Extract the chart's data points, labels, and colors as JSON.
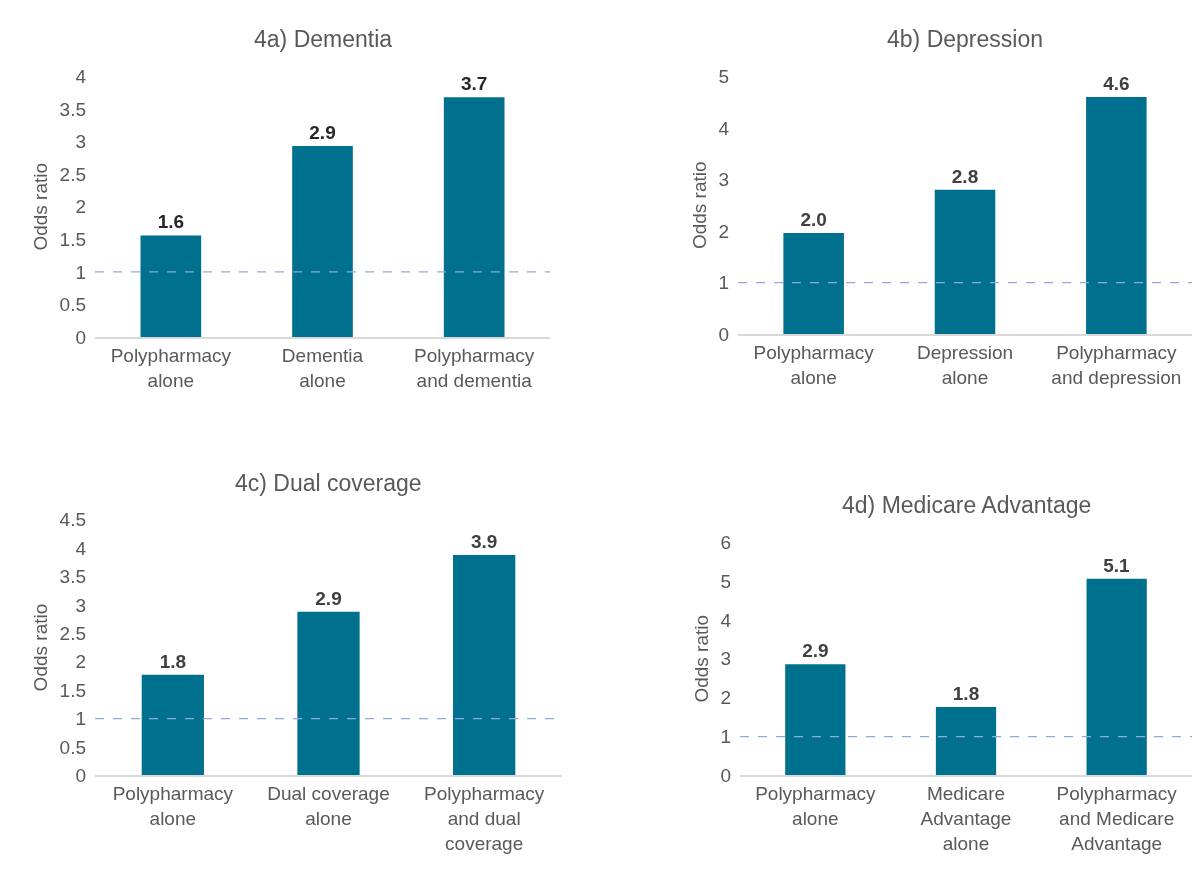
{
  "chart_data": [
    {
      "type": "bar",
      "title": "4a) Dementia",
      "ylabel": "Odds ratio",
      "categories": [
        "Polypharmacy\nalone",
        "Dementia\nalone",
        "Polypharmacy\nand dementia"
      ],
      "values": [
        1.56,
        2.93,
        3.68
      ],
      "value_labels": [
        "1.6",
        "2.9",
        "3.7"
      ],
      "color": "#00708f",
      "ylim": [
        0,
        4
      ],
      "yticks": [
        0,
        0.5,
        1,
        1.5,
        2,
        2.5,
        3,
        3.5,
        4
      ],
      "ref_lines": [
        {
          "axis": "y",
          "value": 1,
          "color": "#8faadc",
          "line_style": "dashed"
        }
      ]
    },
    {
      "type": "bar",
      "title": "4b) Depression",
      "ylabel": "Odds ratio",
      "categories": [
        "Polypharmacy\nalone",
        "Depression\nalone",
        "Polypharmacy\nand depression"
      ],
      "values": [
        1.96,
        2.8,
        4.6
      ],
      "value_labels": [
        "2.0",
        "2.8",
        "4.6"
      ],
      "color": "#00708f",
      "ylim": [
        0,
        5
      ],
      "yticks": [
        0,
        1,
        2,
        3,
        4,
        5
      ],
      "ref_lines": [
        {
          "axis": "y",
          "value": 1,
          "color": "#8faadc",
          "line_style": "dashed"
        }
      ]
    },
    {
      "type": "bar",
      "title": "4c) Dual coverage",
      "ylabel": "Odds ratio",
      "categories": [
        "Polypharmacy\nalone",
        "Dual coverage\nalone",
        "Polypharmacy\nand dual\ncoverage"
      ],
      "values": [
        1.77,
        2.88,
        3.88
      ],
      "value_labels": [
        "1.8",
        "2.9",
        "3.9"
      ],
      "color": "#00708f",
      "ylim": [
        0,
        4.5
      ],
      "yticks": [
        0,
        0.5,
        1,
        1.5,
        2,
        2.5,
        3,
        3.5,
        4,
        4.5
      ],
      "ref_lines": [
        {
          "axis": "y",
          "value": 1,
          "color": "#8faadc",
          "line_style": "dashed"
        }
      ]
    },
    {
      "type": "bar",
      "title": "4d) Medicare Advantage",
      "ylabel": "Odds ratio",
      "categories": [
        "Polypharmacy\nalone",
        "Medicare\nAdvantage\nalone",
        "Polypharmacy\nand Medicare\nAdvantage"
      ],
      "values": [
        2.86,
        1.76,
        5.06
      ],
      "value_labels": [
        "2.9",
        "1.8",
        "5.1"
      ],
      "color": "#00708f",
      "ylim": [
        0,
        6
      ],
      "yticks": [
        0,
        1,
        2,
        3,
        4,
        5,
        6
      ],
      "ref_lines": [
        {
          "axis": "y",
          "value": 1,
          "color": "#8faadc",
          "line_style": "dashed"
        }
      ]
    }
  ]
}
